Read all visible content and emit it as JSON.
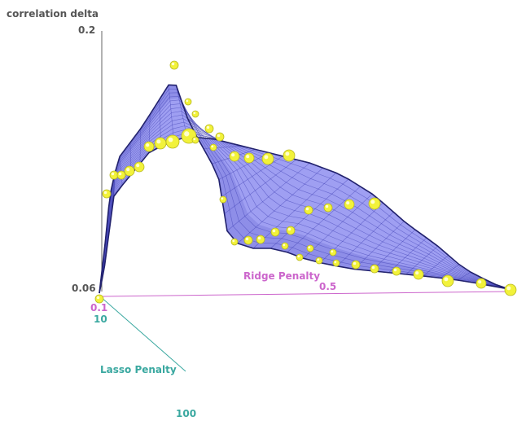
{
  "chart_data": {
    "type": "surface3d",
    "title": "",
    "axes": {
      "z": {
        "label": "correlation delta",
        "ticks": [
          "0.2",
          "0.06"
        ],
        "range": [
          0.06,
          0.2
        ]
      },
      "ridge": {
        "label": "Ridge Penalty",
        "ticks": [
          "0.1",
          "0.5"
        ],
        "range": [
          0.1,
          0.5
        ]
      },
      "lasso": {
        "label": "Lasso Penalty",
        "ticks": [
          "10",
          "100"
        ],
        "range": [
          10,
          100
        ]
      }
    },
    "surface_color": "#8e8ef0",
    "mesh_color": "#3a3ab0",
    "point_color": "#f2f23a",
    "ridge_axis_color": "#cc66cc",
    "lasso_axis_color": "#3aa8a0",
    "z_axis_color": "#666666"
  }
}
